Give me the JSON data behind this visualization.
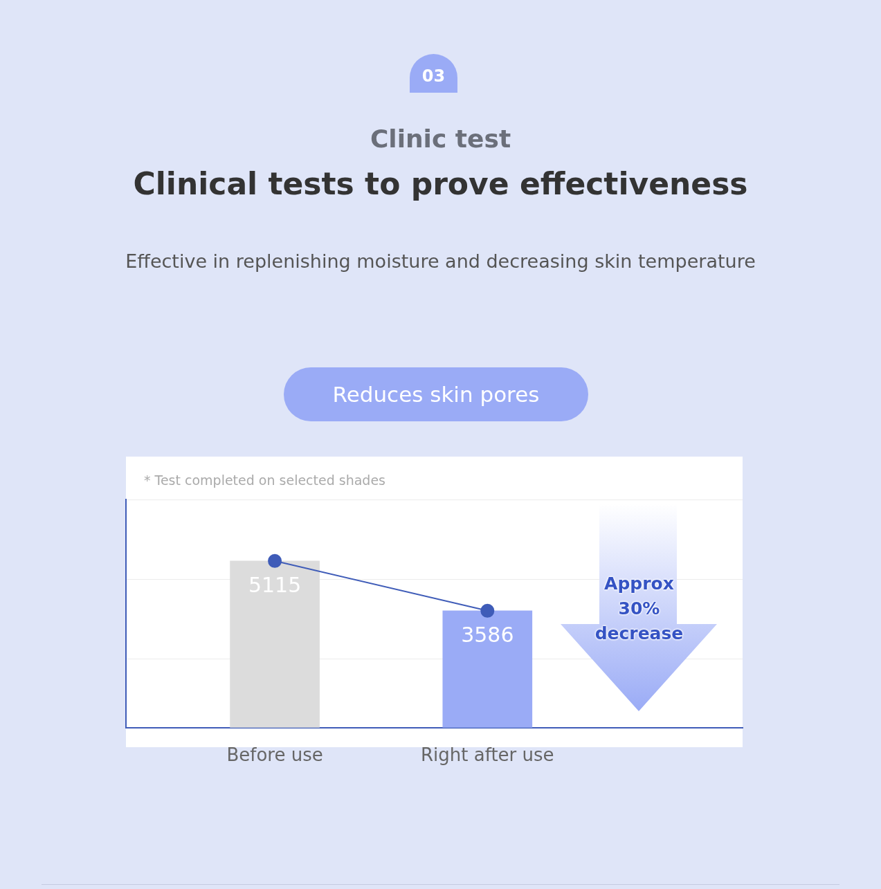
{
  "chart_data": {
    "type": "bar",
    "title": "Clinical tests to prove effectiveness",
    "subtitle": "Effective in replenishing moisture and decreasing skin temperature",
    "annotations": [
      "03",
      "Clinic test",
      "Reduces skin pores",
      "* Test completed on selected shades",
      "Approx 30% decrease"
    ],
    "categories": [
      "Before use",
      "Right after use"
    ],
    "series": [
      {
        "colors": [
          "#dcdcdc",
          "#9aabf6"
        ],
        "values": [
          5115,
          3586
        ],
        "value_labels": [
          "5115",
          "3586"
        ]
      },
      {
        "type": "line",
        "color": "#3f5cb8",
        "marker": "circle",
        "values": [
          5115,
          3586
        ]
      }
    ],
    "ylim": [
      0,
      7000
    ],
    "yticks": [
      {
        "value": 2100,
        "label": null
      },
      {
        "value": 4550,
        "label": null
      },
      {
        "value": 7000,
        "label": null
      }
    ],
    "grid": "y",
    "tick_labels": "x",
    "legend": false
  }
}
